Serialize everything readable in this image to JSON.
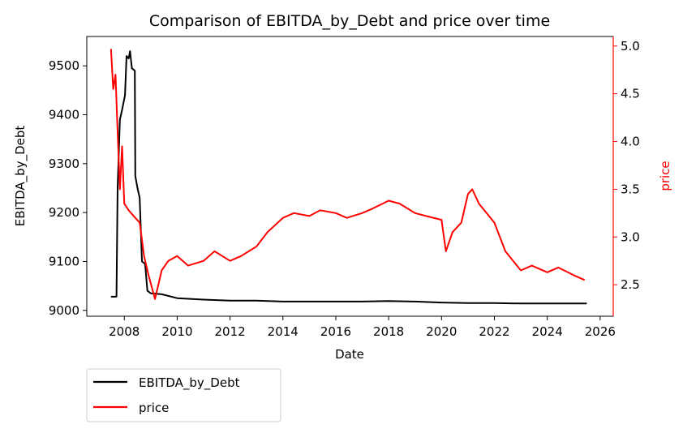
{
  "chart_data": {
    "type": "line",
    "title": "Comparison of EBITDA_by_Debt and price over time",
    "xlabel": "Date",
    "ylabel_left": "EBITDA_by_Debt",
    "ylabel_right": "price",
    "xlim": [
      "2006-08-01",
      "2026-07-01"
    ],
    "ylim_left": [
      8988,
      9560
    ],
    "ylim_right": [
      2.17,
      5.1
    ],
    "x_ticks": [
      "2008",
      "2010",
      "2012",
      "2014",
      "2016",
      "2018",
      "2020",
      "2022",
      "2024",
      "2026"
    ],
    "y_left_ticks": [
      9000,
      9100,
      9200,
      9300,
      9400,
      9500
    ],
    "y_right_ticks": [
      "2.5",
      "3.0",
      "3.5",
      "4.0",
      "4.5",
      "5.0"
    ],
    "grid": false,
    "legend_placement": "below-left",
    "colors": {
      "EBITDA_by_Debt": "#000000",
      "price": "#ff0000",
      "right_axis": "#ff0000"
    },
    "series": [
      {
        "name": "EBITDA_by_Debt",
        "axis": "left",
        "points": [
          [
            "2007-07-01",
            9028
          ],
          [
            "2007-09-15",
            9028
          ],
          [
            "2007-10-01",
            9250
          ],
          [
            "2007-11-01",
            9390
          ],
          [
            "2007-12-01",
            9410
          ],
          [
            "2008-01-10",
            9440
          ],
          [
            "2008-02-01",
            9520
          ],
          [
            "2008-03-01",
            9515
          ],
          [
            "2008-03-20",
            9530
          ],
          [
            "2008-04-15",
            9495
          ],
          [
            "2008-05-25",
            9490
          ],
          [
            "2008-06-01",
            9275
          ],
          [
            "2008-07-01",
            9250
          ],
          [
            "2008-08-01",
            9230
          ],
          [
            "2008-09-01",
            9100
          ],
          [
            "2008-10-15",
            9095
          ],
          [
            "2008-11-15",
            9040
          ],
          [
            "2009-01-01",
            9035
          ],
          [
            "2009-06-01",
            9033
          ],
          [
            "2010-01-01",
            9025
          ],
          [
            "2011-01-01",
            9022
          ],
          [
            "2012-01-01",
            9020
          ],
          [
            "2013-01-01",
            9020
          ],
          [
            "2014-01-01",
            9018
          ],
          [
            "2015-01-01",
            9018
          ],
          [
            "2016-01-01",
            9018
          ],
          [
            "2017-01-01",
            9018
          ],
          [
            "2018-01-01",
            9019
          ],
          [
            "2019-01-01",
            9018
          ],
          [
            "2020-01-01",
            9016
          ],
          [
            "2021-01-01",
            9015
          ],
          [
            "2022-01-01",
            9015
          ],
          [
            "2023-01-01",
            9014
          ],
          [
            "2024-01-01",
            9014
          ],
          [
            "2025-07-01",
            9014
          ]
        ]
      },
      {
        "name": "price",
        "axis": "right",
        "points": [
          [
            "2007-07-01",
            4.97
          ],
          [
            "2007-08-01",
            4.55
          ],
          [
            "2007-09-01",
            4.7
          ],
          [
            "2007-10-01",
            4.1
          ],
          [
            "2007-11-01",
            3.5
          ],
          [
            "2007-12-01",
            3.95
          ],
          [
            "2008-01-01",
            3.35
          ],
          [
            "2008-03-01",
            3.28
          ],
          [
            "2008-06-01",
            3.2
          ],
          [
            "2008-08-01",
            3.15
          ],
          [
            "2008-10-01",
            2.8
          ],
          [
            "2008-12-01",
            2.6
          ],
          [
            "2009-03-01",
            2.35
          ],
          [
            "2009-06-01",
            2.65
          ],
          [
            "2009-09-01",
            2.75
          ],
          [
            "2010-01-01",
            2.8
          ],
          [
            "2010-06-01",
            2.7
          ],
          [
            "2011-01-01",
            2.75
          ],
          [
            "2011-06-01",
            2.85
          ],
          [
            "2012-01-01",
            2.75
          ],
          [
            "2012-06-01",
            2.8
          ],
          [
            "2013-01-01",
            2.9
          ],
          [
            "2013-06-01",
            3.05
          ],
          [
            "2014-01-01",
            3.2
          ],
          [
            "2014-06-01",
            3.25
          ],
          [
            "2015-01-01",
            3.22
          ],
          [
            "2015-06-01",
            3.28
          ],
          [
            "2016-01-01",
            3.25
          ],
          [
            "2016-06-01",
            3.2
          ],
          [
            "2017-01-01",
            3.25
          ],
          [
            "2017-06-01",
            3.3
          ],
          [
            "2018-01-01",
            3.38
          ],
          [
            "2018-06-01",
            3.35
          ],
          [
            "2019-01-01",
            3.25
          ],
          [
            "2019-06-01",
            3.22
          ],
          [
            "2020-01-01",
            3.18
          ],
          [
            "2020-03-01",
            2.85
          ],
          [
            "2020-06-01",
            3.05
          ],
          [
            "2020-10-01",
            3.15
          ],
          [
            "2021-01-01",
            3.45
          ],
          [
            "2021-03-01",
            3.5
          ],
          [
            "2021-06-01",
            3.35
          ],
          [
            "2022-01-01",
            3.15
          ],
          [
            "2022-06-01",
            2.85
          ],
          [
            "2023-01-01",
            2.65
          ],
          [
            "2023-06-01",
            2.7
          ],
          [
            "2024-01-01",
            2.63
          ],
          [
            "2024-06-01",
            2.68
          ],
          [
            "2025-01-01",
            2.6
          ],
          [
            "2025-06-01",
            2.55
          ]
        ]
      }
    ]
  }
}
